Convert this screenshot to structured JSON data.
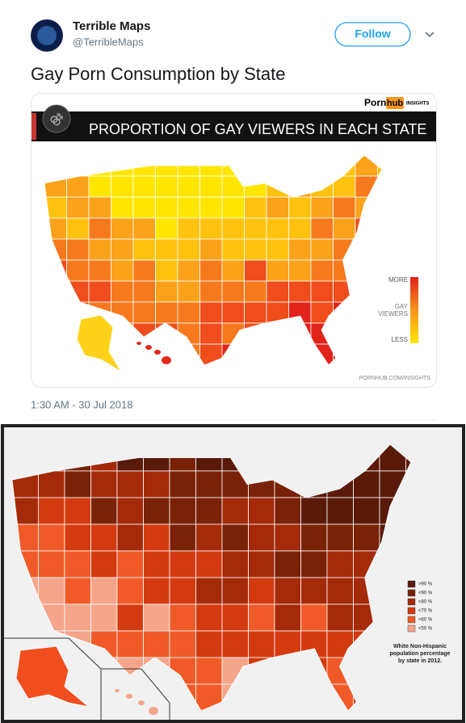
{
  "tweet": {
    "user": {
      "name": "Terrible Maps",
      "handle": "@TerribleMaps"
    },
    "follow_button": "Follow",
    "text": "Gay Porn Consumption by State",
    "timestamp": "1:30 AM - 30 Jul 2018"
  },
  "image_top": {
    "logo": {
      "porn": "Porn",
      "hub": "hub",
      "insights": "INSIGHTS"
    },
    "banner": "PROPORTION OF GAY VIEWERS IN EACH STATE",
    "legend": {
      "more": "MORE",
      "label_lines": [
        "GAY",
        "VIEWERS"
      ],
      "less": "LESS"
    },
    "source": "PORNHUB.COM/INSIGHTS"
  },
  "image_bottom": {
    "legend": [
      ">90 %",
      "<90 %",
      "<80 %",
      "<70 %",
      "<60 %",
      "<50 %"
    ],
    "caption_lines": [
      "White Non-Hispanic",
      "population percentage",
      "by state in 2012."
    ]
  }
}
